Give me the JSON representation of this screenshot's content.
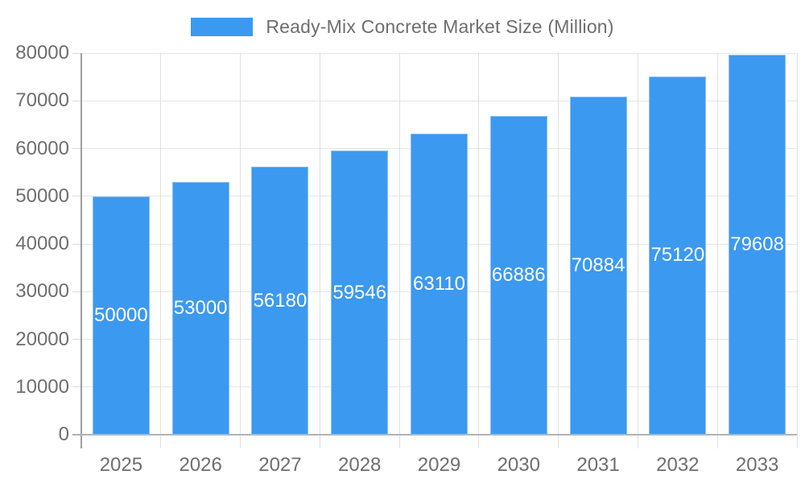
{
  "chart_data": {
    "type": "bar",
    "title": "Ready-Mix Concrete Market Size (Million)",
    "categories": [
      "2025",
      "2026",
      "2027",
      "2028",
      "2029",
      "2030",
      "2031",
      "2032",
      "2033"
    ],
    "values": [
      50000,
      53000,
      56180,
      59546,
      63110,
      66886,
      70884,
      75120,
      79608
    ],
    "xlabel": "",
    "ylabel": "",
    "ylim": [
      0,
      80000
    ],
    "yticks": [
      0,
      10000,
      20000,
      30000,
      40000,
      50000,
      60000,
      70000,
      80000
    ],
    "grid": true,
    "legend_position": "top",
    "colors": {
      "bar_fill": "#3b99f0",
      "bar_border": "#8cc1f4",
      "bar_value_text": "#ffffff",
      "axis_text": "#6e6e6e",
      "grid_line": "#e6e6e6",
      "y_axis_line": "#9e9e9e",
      "x_axis_line": "#b3b3b3"
    }
  },
  "legend": {
    "label": "Ready-Mix Concrete Market Size (Million)",
    "swatch_color": "#3b99f0"
  }
}
